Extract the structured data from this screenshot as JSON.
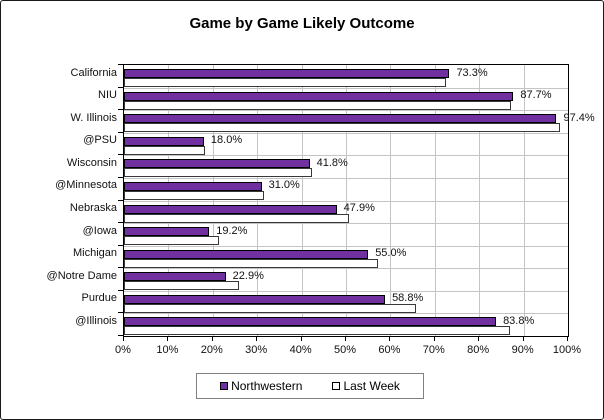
{
  "chart_data": {
    "type": "bar",
    "orientation": "horizontal",
    "title": "Game by Game Likely Outcome",
    "categories": [
      "California",
      "NIU",
      "W. Illinois",
      "@PSU",
      "Wisconsin",
      "@Minnesota",
      "Nebraska",
      "@Iowa",
      "Michigan",
      "@Notre Dame",
      "Purdue",
      "@Illinois"
    ],
    "series": [
      {
        "name": "Northwestern",
        "color": "#7030A0",
        "values": [
          73.3,
          87.7,
          97.4,
          18.0,
          41.8,
          31.0,
          47.9,
          19.2,
          55.0,
          22.9,
          58.8,
          83.8
        ],
        "data_labels": [
          "73.3%",
          "87.7%",
          "97.4%",
          "18.0%",
          "41.8%",
          "31.0%",
          "47.9%",
          "19.2%",
          "55.0%",
          "22.9%",
          "58.8%",
          "83.8%"
        ]
      },
      {
        "name": "Last Week",
        "color": "#FFFFFF",
        "values": [
          72.5,
          87.2,
          98.3,
          18.2,
          42.3,
          31.5,
          50.6,
          21.5,
          57.2,
          26.0,
          65.7,
          86.9
        ]
      }
    ],
    "xlim": [
      0,
      100
    ],
    "x_tick_labels": [
      "0%",
      "10%",
      "20%",
      "30%",
      "40%",
      "50%",
      "60%",
      "70%",
      "80%",
      "90%",
      "100%"
    ],
    "grid": true,
    "legend_position": "bottom"
  },
  "colors": {
    "bar_fill": "#7030A0",
    "bar_border": "#000000",
    "gridline": "#C4C4C4",
    "axis": "#000000",
    "legend_border": "#808080"
  }
}
